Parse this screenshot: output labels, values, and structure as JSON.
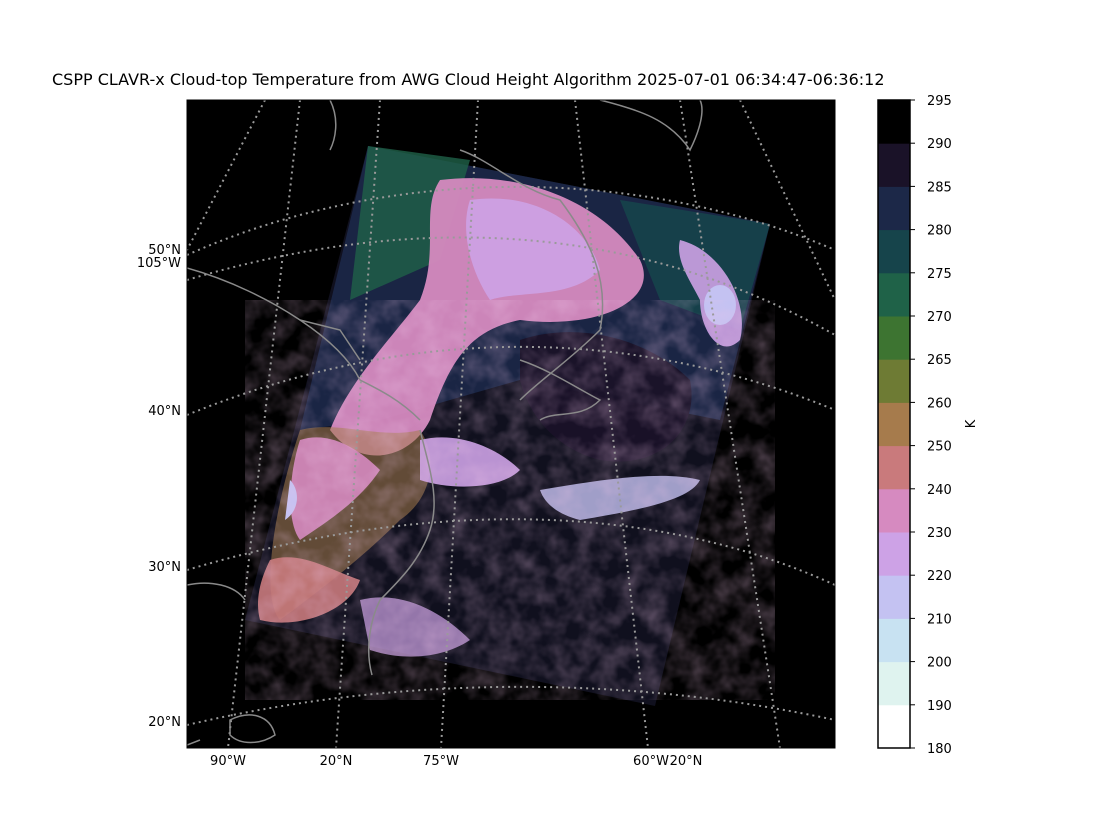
{
  "title": "CSPP CLAVR-x Cloud-top Temperature from AWG Cloud Height Algorithm 2025-07-01 06:34:47-06:36:12",
  "colorbar": {
    "unit": "K",
    "ticks": [
      "180",
      "190",
      "200",
      "210",
      "220",
      "230",
      "240",
      "250",
      "260",
      "265",
      "270",
      "275",
      "280",
      "285",
      "290",
      "295"
    ],
    "colors": [
      "#ffffff",
      "#dff3ef",
      "#c8e2f2",
      "#c4c2f2",
      "#cda2e6",
      "#d68ac0",
      "#c97a7c",
      "#a67b4c",
      "#6e7b34",
      "#3d7431",
      "#1f6248",
      "#16444b",
      "#1c2848",
      "#1a1228",
      "#000000"
    ]
  },
  "map": {
    "left_labels": [
      "50°N",
      "105°W",
      "40°N",
      "30°N",
      "20°N"
    ],
    "bottom_labels": [
      "90°W",
      "20°N",
      "75°W",
      "60°W",
      "20°N"
    ],
    "background_color": "#000000",
    "grid_color": "#9a9a9a",
    "coast_color": "#8a8a8a"
  }
}
